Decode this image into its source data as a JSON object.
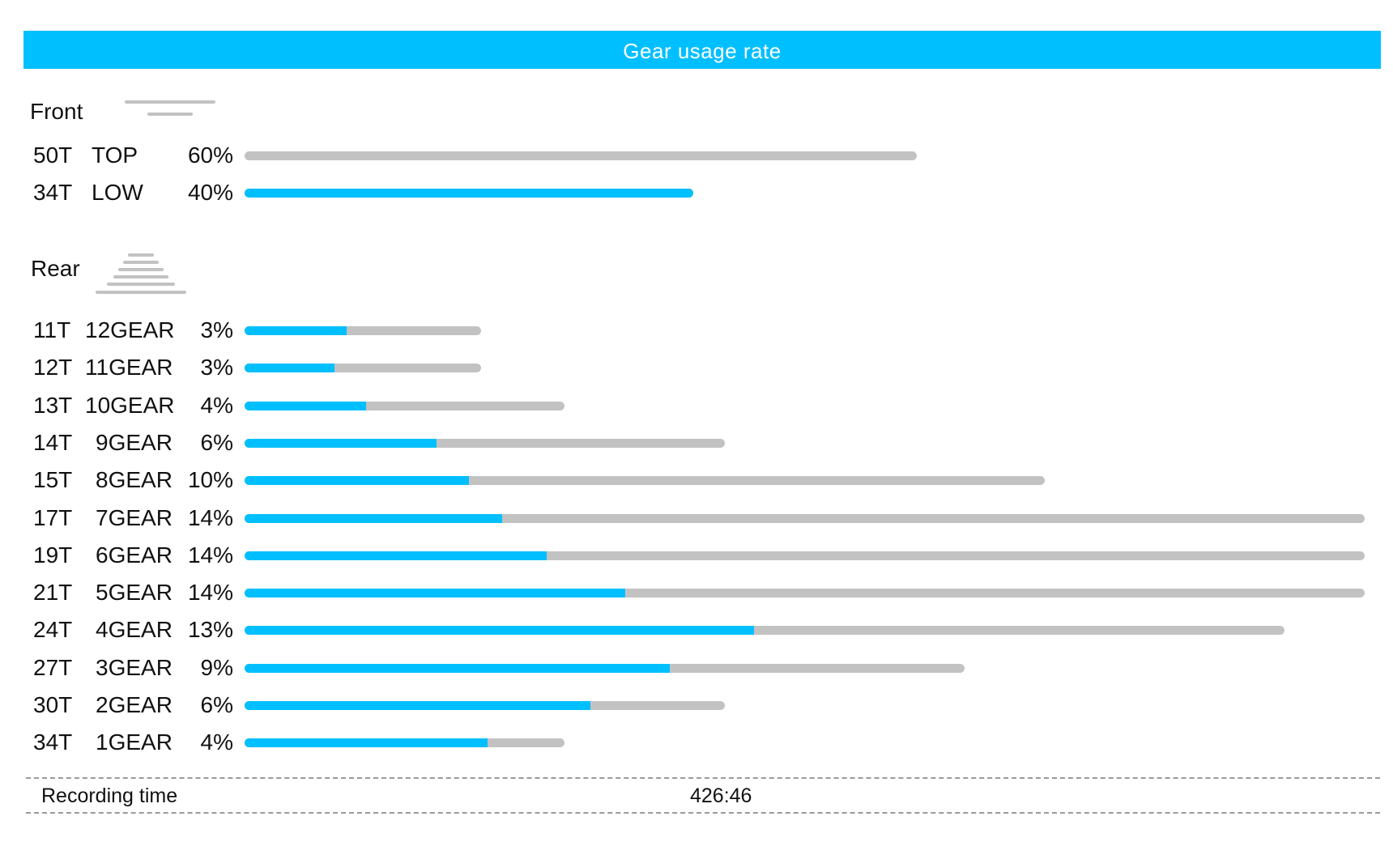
{
  "header": {
    "title": "Gear usage rate"
  },
  "accent_color": "#00bfff",
  "track_color": "#c2c2c2",
  "front": {
    "label": "Front",
    "icon": "front-chainrings-icon",
    "rows": [
      {
        "teeth": "50T",
        "gear": "TOP",
        "percent": "60%",
        "highlight_fraction": 0
      },
      {
        "teeth": "34T",
        "gear": "LOW",
        "percent": "40%",
        "highlight_fraction": 1
      }
    ]
  },
  "rear": {
    "label": "Rear",
    "icon": "rear-cassette-icon",
    "rows": [
      {
        "teeth": "11T",
        "gear": "12GEAR",
        "percent": "3%",
        "highlight_fraction": 0.43
      },
      {
        "teeth": "12T",
        "gear": "11GEAR",
        "percent": "3%",
        "highlight_fraction": 0.38
      },
      {
        "teeth": "13T",
        "gear": "10GEAR",
        "percent": "4%",
        "highlight_fraction": 0.38
      },
      {
        "teeth": "14T",
        "gear": "9GEAR",
        "percent": "6%",
        "highlight_fraction": 0.4
      },
      {
        "teeth": "15T",
        "gear": "8GEAR",
        "percent": "10%",
        "highlight_fraction": 0.28
      },
      {
        "teeth": "17T",
        "gear": "7GEAR",
        "percent": "14%",
        "highlight_fraction": 0.23
      },
      {
        "teeth": "19T",
        "gear": "6GEAR",
        "percent": "14%",
        "highlight_fraction": 0.27
      },
      {
        "teeth": "21T",
        "gear": "5GEAR",
        "percent": "14%",
        "highlight_fraction": 0.34
      },
      {
        "teeth": "24T",
        "gear": "4GEAR",
        "percent": "13%",
        "highlight_fraction": 0.49
      },
      {
        "teeth": "27T",
        "gear": "3GEAR",
        "percent": "9%",
        "highlight_fraction": 0.59
      },
      {
        "teeth": "30T",
        "gear": "2GEAR",
        "percent": "6%",
        "highlight_fraction": 0.72
      },
      {
        "teeth": "34T",
        "gear": "1GEAR",
        "percent": "4%",
        "highlight_fraction": 0.76
      }
    ]
  },
  "recording": {
    "label": "Recording time",
    "value": "426:46"
  }
}
